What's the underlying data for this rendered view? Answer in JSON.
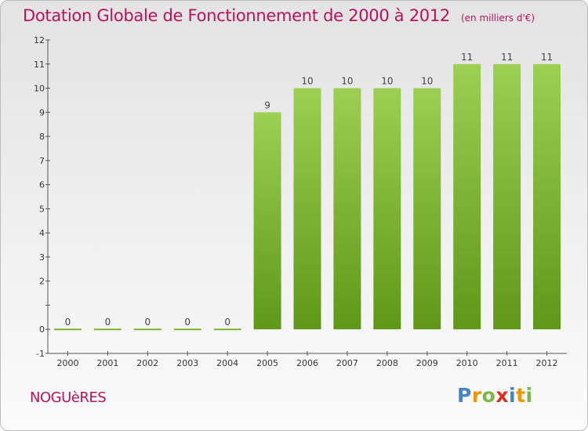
{
  "header": {
    "title": "Dotation Globale de Fonctionnement de 2000 à 2012",
    "subtitle": "(en milliers d'€)"
  },
  "footer": {
    "commune": "NOGUèRES",
    "logo": {
      "letters": [
        "P",
        "r",
        "o",
        "x",
        "i",
        "t",
        "i"
      ],
      "colors": [
        "#3f86c8",
        "#f29400",
        "#7ab648",
        "#e32a1c",
        "#3f86c8",
        "#f29400",
        "#7ab648"
      ]
    }
  },
  "chart_data": {
    "type": "bar",
    "title": "Dotation Globale de Fonctionnement de 2000 à 2012",
    "subtitle": "(en milliers d'€)",
    "categories": [
      "2000",
      "2001",
      "2002",
      "2003",
      "2004",
      "2005",
      "2006",
      "2007",
      "2008",
      "2009",
      "2010",
      "2011",
      "2012"
    ],
    "values": [
      0,
      0,
      0,
      0,
      0,
      9,
      10,
      10,
      10,
      10,
      11,
      11,
      11
    ],
    "data_labels": [
      "0",
      "0",
      "0",
      "0",
      "0",
      "9",
      "10",
      "10",
      "10",
      "10",
      "11",
      "11",
      "11"
    ],
    "ylim": [
      -1,
      12
    ],
    "yticks": [
      -1,
      0,
      1,
      2,
      3,
      4,
      5,
      6,
      7,
      8,
      9,
      10,
      11,
      12
    ],
    "ytick_labels": [
      "-1",
      "0",
      "",
      "2",
      "3",
      "4",
      "5",
      "6",
      "7",
      "8",
      "9",
      "10",
      "11",
      "12"
    ],
    "grid": false,
    "colors": {
      "bar_light": "#9ccf52",
      "bar_dark": "#5f9818",
      "axis": "#555555"
    }
  }
}
